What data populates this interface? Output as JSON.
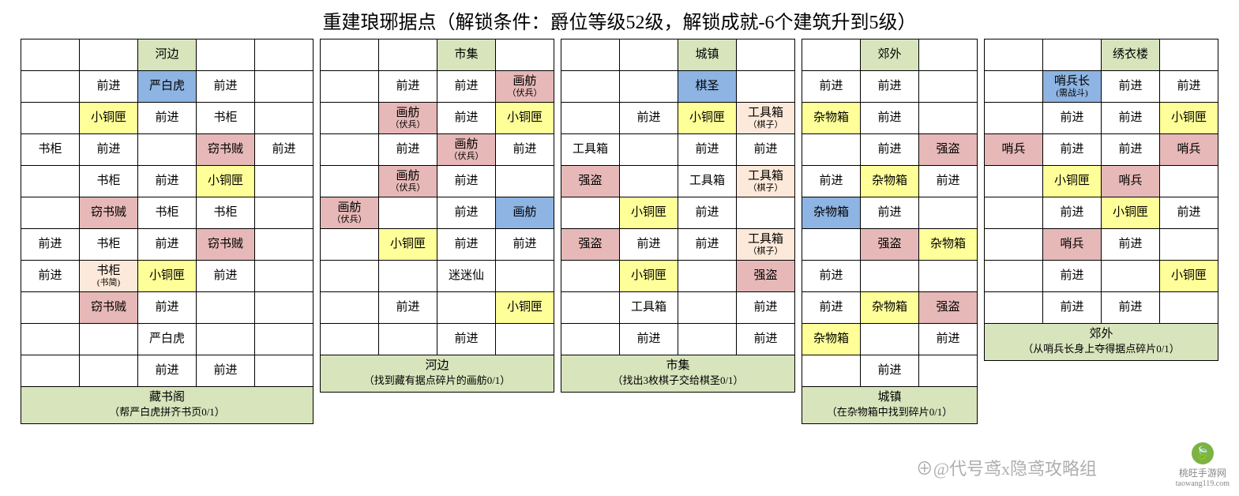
{
  "title": "重建琅琊据点（解锁条件：爵位等级52级，解锁成就-6个建筑升到5级）",
  "colors": {
    "green": "#d8e4bc",
    "blue": "#8db4e2",
    "yellow": "#ffff99",
    "pink": "#e6b8b7",
    "orange": "#fde9d9",
    "white": "#ffffff"
  },
  "watermark": "⊕@代号鸢x隐鸢攻略组",
  "site": "桃旺手游网",
  "site_url": "taowang119.com",
  "boards": [
    {
      "name": "藏书阁",
      "footer_main": "藏书阁",
      "footer_sub": "（帮严白虎拼齐书页0/1）",
      "cols": 5,
      "rows": [
        [
          {
            "t": ""
          },
          {
            "t": ""
          },
          {
            "t": "河边",
            "c": "green"
          },
          {
            "t": ""
          },
          {
            "t": ""
          }
        ],
        [
          {
            "t": ""
          },
          {
            "t": "前进"
          },
          {
            "t": "严白虎",
            "c": "blue"
          },
          {
            "t": "前进"
          },
          {
            "t": ""
          }
        ],
        [
          {
            "t": ""
          },
          {
            "t": "小铜匣",
            "c": "yellow"
          },
          {
            "t": "前进"
          },
          {
            "t": "书柜"
          },
          {
            "t": ""
          }
        ],
        [
          {
            "t": "书柜"
          },
          {
            "t": "前进"
          },
          {
            "t": ""
          },
          {
            "t": "窃书贼",
            "c": "pink"
          },
          {
            "t": "前进"
          }
        ],
        [
          {
            "t": ""
          },
          {
            "t": "书柜"
          },
          {
            "t": "前进"
          },
          {
            "t": "小铜匣",
            "c": "yellow"
          },
          {
            "t": ""
          }
        ],
        [
          {
            "t": ""
          },
          {
            "t": "窃书贼",
            "c": "pink"
          },
          {
            "t": "书柜"
          },
          {
            "t": "书柜"
          },
          {
            "t": ""
          }
        ],
        [
          {
            "t": "前进"
          },
          {
            "t": "书柜"
          },
          {
            "t": "前进"
          },
          {
            "t": "窃书贼",
            "c": "pink"
          },
          {
            "t": ""
          }
        ],
        [
          {
            "t": "前进"
          },
          {
            "t": "书柜",
            "s": "(书简)",
            "c": "orange"
          },
          {
            "t": "小铜匣",
            "c": "yellow"
          },
          {
            "t": "前进"
          },
          {
            "t": ""
          }
        ],
        [
          {
            "t": ""
          },
          {
            "t": "窃书贼",
            "c": "pink"
          },
          {
            "t": "前进"
          },
          {
            "t": ""
          },
          {
            "t": ""
          }
        ],
        [
          {
            "t": ""
          },
          {
            "t": ""
          },
          {
            "t": "严白虎"
          },
          {
            "t": ""
          },
          {
            "t": ""
          }
        ],
        [
          {
            "t": ""
          },
          {
            "t": ""
          },
          {
            "t": "前进"
          },
          {
            "t": "前进"
          },
          {
            "t": ""
          }
        ]
      ]
    },
    {
      "name": "河边",
      "footer_main": "河边",
      "footer_sub": "（找到藏有据点碎片的画舫0/1）",
      "cols": 4,
      "rows": [
        [
          {
            "t": ""
          },
          {
            "t": ""
          },
          {
            "t": "市集",
            "c": "green"
          },
          {
            "t": ""
          }
        ],
        [
          {
            "t": ""
          },
          {
            "t": "前进"
          },
          {
            "t": "前进"
          },
          {
            "t": "画舫",
            "s": "（伏兵）",
            "c": "pink"
          }
        ],
        [
          {
            "t": ""
          },
          {
            "t": "画舫",
            "s": "（伏兵）",
            "c": "pink"
          },
          {
            "t": "前进"
          },
          {
            "t": "小铜匣",
            "c": "yellow"
          }
        ],
        [
          {
            "t": ""
          },
          {
            "t": "前进"
          },
          {
            "t": "画舫",
            "s": "（伏兵）",
            "c": "pink"
          },
          {
            "t": "前进"
          }
        ],
        [
          {
            "t": ""
          },
          {
            "t": "画舫",
            "s": "（伏兵）",
            "c": "pink"
          },
          {
            "t": "前进"
          },
          {
            "t": ""
          }
        ],
        [
          {
            "t": "画舫",
            "s": "（伏兵）",
            "c": "pink"
          },
          {
            "t": ""
          },
          {
            "t": "前进"
          },
          {
            "t": "画舫",
            "c": "blue"
          }
        ],
        [
          {
            "t": ""
          },
          {
            "t": "小铜匣",
            "c": "yellow"
          },
          {
            "t": "前进"
          },
          {
            "t": "前进"
          }
        ],
        [
          {
            "t": ""
          },
          {
            "t": ""
          },
          {
            "t": "迷迷仙"
          },
          {
            "t": ""
          }
        ],
        [
          {
            "t": ""
          },
          {
            "t": "前进"
          },
          {
            "t": ""
          },
          {
            "t": "小铜匣",
            "c": "yellow"
          }
        ],
        [
          {
            "t": ""
          },
          {
            "t": ""
          },
          {
            "t": "前进"
          },
          {
            "t": ""
          }
        ]
      ]
    },
    {
      "name": "市集",
      "footer_main": "市集",
      "footer_sub": "（找出3枚棋子交给棋圣0/1）",
      "cols": 4,
      "rows": [
        [
          {
            "t": ""
          },
          {
            "t": ""
          },
          {
            "t": "城镇",
            "c": "green"
          },
          {
            "t": ""
          }
        ],
        [
          {
            "t": ""
          },
          {
            "t": ""
          },
          {
            "t": "棋圣",
            "c": "blue"
          },
          {
            "t": ""
          }
        ],
        [
          {
            "t": ""
          },
          {
            "t": "前进"
          },
          {
            "t": "小铜匣",
            "c": "yellow"
          },
          {
            "t": "工具箱",
            "s": "（棋子）",
            "c": "orange"
          }
        ],
        [
          {
            "t": "工具箱"
          },
          {
            "t": ""
          },
          {
            "t": "前进"
          },
          {
            "t": "前进"
          }
        ],
        [
          {
            "t": "强盗",
            "c": "pink"
          },
          {
            "t": ""
          },
          {
            "t": "工具箱"
          },
          {
            "t": "工具箱",
            "s": "（棋子）",
            "c": "orange"
          }
        ],
        [
          {
            "t": ""
          },
          {
            "t": "小铜匣",
            "c": "yellow"
          },
          {
            "t": "前进"
          },
          {
            "t": ""
          }
        ],
        [
          {
            "t": "强盗",
            "c": "pink"
          },
          {
            "t": "前进"
          },
          {
            "t": "前进"
          },
          {
            "t": "工具箱",
            "s": "（棋子）",
            "c": "orange"
          }
        ],
        [
          {
            "t": ""
          },
          {
            "t": "小铜匣",
            "c": "yellow"
          },
          {
            "t": ""
          },
          {
            "t": "强盗",
            "c": "pink"
          }
        ],
        [
          {
            "t": ""
          },
          {
            "t": "工具箱"
          },
          {
            "t": ""
          },
          {
            "t": "前进"
          }
        ],
        [
          {
            "t": ""
          },
          {
            "t": "前进"
          },
          {
            "t": ""
          },
          {
            "t": "前进"
          }
        ]
      ]
    },
    {
      "name": "城镇",
      "footer_main": "城镇",
      "footer_sub": "（在杂物箱中找到碎片0/1）",
      "cols": 3,
      "rows": [
        [
          {
            "t": ""
          },
          {
            "t": "郊外",
            "c": "green"
          },
          {
            "t": ""
          }
        ],
        [
          {
            "t": "前进"
          },
          {
            "t": "前进"
          },
          {
            "t": ""
          }
        ],
        [
          {
            "t": "杂物箱",
            "c": "yellow"
          },
          {
            "t": "前进"
          },
          {
            "t": ""
          }
        ],
        [
          {
            "t": ""
          },
          {
            "t": "前进"
          },
          {
            "t": "强盗",
            "c": "pink"
          }
        ],
        [
          {
            "t": "前进"
          },
          {
            "t": "杂物箱",
            "c": "yellow"
          },
          {
            "t": "前进"
          }
        ],
        [
          {
            "t": "杂物箱",
            "c": "blue"
          },
          {
            "t": "前进"
          },
          {
            "t": ""
          }
        ],
        [
          {
            "t": ""
          },
          {
            "t": "强盗",
            "c": "pink"
          },
          {
            "t": "杂物箱",
            "c": "yellow"
          }
        ],
        [
          {
            "t": "前进"
          },
          {
            "t": ""
          },
          {
            "t": ""
          }
        ],
        [
          {
            "t": "前进"
          },
          {
            "t": "杂物箱",
            "c": "yellow"
          },
          {
            "t": "强盗",
            "c": "pink"
          }
        ],
        [
          {
            "t": "杂物箱",
            "c": "yellow"
          },
          {
            "t": ""
          },
          {
            "t": "前进"
          }
        ],
        [
          {
            "t": ""
          },
          {
            "t": "前进"
          },
          {
            "t": ""
          }
        ]
      ]
    },
    {
      "name": "郊外",
      "footer_main": "郊外",
      "footer_sub": "（从哨兵长身上夺得据点碎片0/1）",
      "cols": 4,
      "rows": [
        [
          {
            "t": ""
          },
          {
            "t": ""
          },
          {
            "t": "绣衣楼",
            "c": "green"
          },
          {
            "t": ""
          }
        ],
        [
          {
            "t": ""
          },
          {
            "t": "哨兵长",
            "s": "(需战斗)",
            "c": "blue"
          },
          {
            "t": "前进"
          },
          {
            "t": "前进"
          }
        ],
        [
          {
            "t": ""
          },
          {
            "t": "前进"
          },
          {
            "t": "前进"
          },
          {
            "t": "小铜匣",
            "c": "yellow"
          }
        ],
        [
          {
            "t": "哨兵",
            "c": "pink"
          },
          {
            "t": "前进"
          },
          {
            "t": "前进"
          },
          {
            "t": "哨兵",
            "c": "pink"
          }
        ],
        [
          {
            "t": ""
          },
          {
            "t": "小铜匣",
            "c": "yellow"
          },
          {
            "t": "哨兵",
            "c": "pink"
          },
          {
            "t": ""
          }
        ],
        [
          {
            "t": ""
          },
          {
            "t": "前进"
          },
          {
            "t": "小铜匣",
            "c": "yellow"
          },
          {
            "t": "前进"
          }
        ],
        [
          {
            "t": ""
          },
          {
            "t": "哨兵",
            "c": "pink"
          },
          {
            "t": "前进"
          },
          {
            "t": ""
          }
        ],
        [
          {
            "t": ""
          },
          {
            "t": "前进"
          },
          {
            "t": ""
          },
          {
            "t": "小铜匣",
            "c": "yellow"
          }
        ],
        [
          {
            "t": ""
          },
          {
            "t": "前进"
          },
          {
            "t": "前进"
          },
          {
            "t": ""
          }
        ]
      ]
    }
  ]
}
